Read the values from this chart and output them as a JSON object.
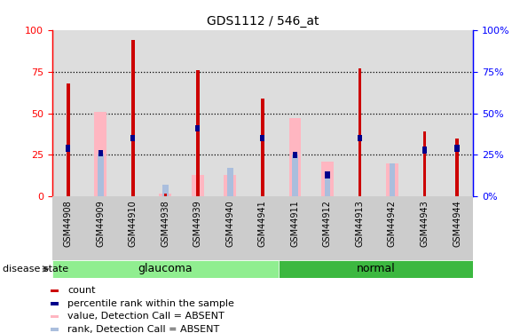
{
  "title": "GDS1112 / 546_at",
  "samples": [
    "GSM44908",
    "GSM44909",
    "GSM44910",
    "GSM44938",
    "GSM44939",
    "GSM44940",
    "GSM44941",
    "GSM44911",
    "GSM44912",
    "GSM44913",
    "GSM44942",
    "GSM44943",
    "GSM44944"
  ],
  "groups": [
    "glaucoma",
    "glaucoma",
    "glaucoma",
    "glaucoma",
    "glaucoma",
    "glaucoma",
    "glaucoma",
    "normal",
    "normal",
    "normal",
    "normal",
    "normal",
    "normal"
  ],
  "red_count": [
    68,
    0,
    94,
    2,
    76,
    0,
    59,
    0,
    0,
    77,
    0,
    39,
    35
  ],
  "blue_rank": [
    29,
    26,
    35,
    0,
    41,
    0,
    35,
    25,
    13,
    35,
    0,
    28,
    29
  ],
  "pink_value": [
    0,
    51,
    0,
    2,
    13,
    13,
    0,
    47,
    21,
    0,
    20,
    0,
    0
  ],
  "pink_rank": [
    0,
    26,
    0,
    7,
    0,
    17,
    0,
    25,
    13,
    0,
    20,
    0,
    0
  ],
  "glaucoma_color": "#90EE90",
  "normal_color": "#3CB840",
  "red_color": "#CC0000",
  "blue_color": "#00008B",
  "pink_value_color": "#FFB6C1",
  "pink_rank_color": "#AABEDD",
  "ylim": [
    0,
    100
  ],
  "yticks": [
    0,
    25,
    50,
    75,
    100
  ],
  "disease_state_label": "disease state",
  "glaucoma_label": "glaucoma",
  "normal_label": "normal",
  "legend_count": "count",
  "legend_rank": "percentile rank within the sample",
  "legend_pink_value": "value, Detection Call = ABSENT",
  "legend_pink_rank": "rank, Detection Call = ABSENT"
}
